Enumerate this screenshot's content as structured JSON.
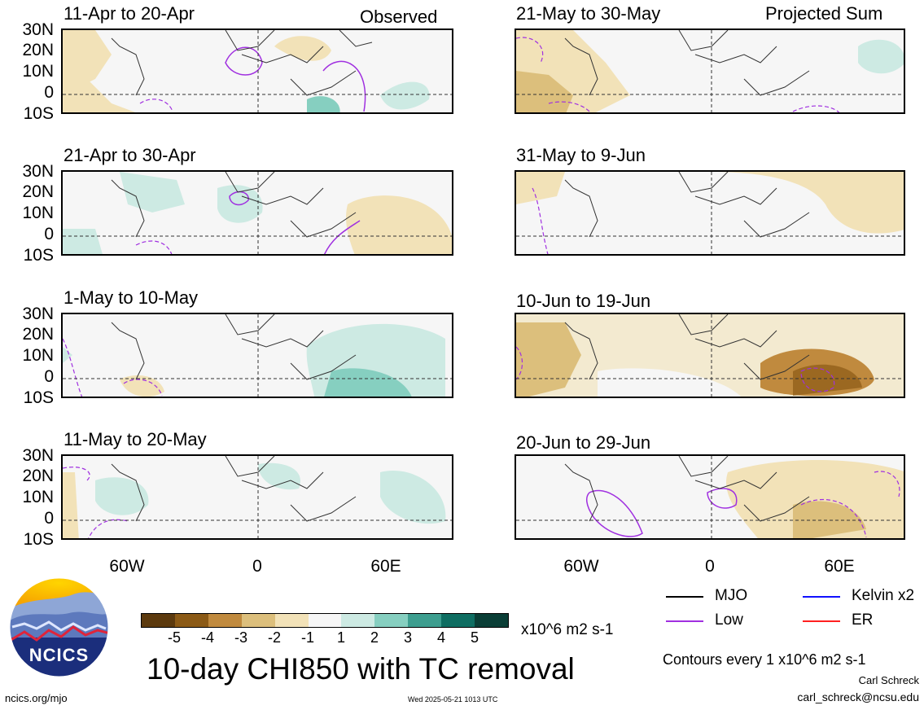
{
  "header": {
    "left": "Observed",
    "right": "Projected Sum"
  },
  "panels_left": [
    {
      "title": "11-Apr to 20-Apr"
    },
    {
      "title": "21-Apr to 30-Apr"
    },
    {
      "title": "1-May to 10-May"
    },
    {
      "title": "11-May to 20-May"
    }
  ],
  "panels_right": [
    {
      "title": "21-May to 30-May"
    },
    {
      "title": "31-May to 9-Jun"
    },
    {
      "title": "10-Jun to 19-Jun"
    },
    {
      "title": "20-Jun to 29-Jun"
    }
  ],
  "lat_labels": [
    "30N",
    "20N",
    "10N",
    "0",
    "10S"
  ],
  "lon_labels": [
    "60W",
    "0",
    "60E"
  ],
  "colorbar": {
    "labels": [
      "-5",
      "-4",
      "-3",
      "-2",
      "-1",
      "1",
      "2",
      "3",
      "4",
      "5"
    ],
    "colors": [
      "#5c3a0e",
      "#8b5a16",
      "#c08a3e",
      "#dcbf7c",
      "#f2e2b8",
      "#f6f6f6",
      "#cdeae3",
      "#86cfc0",
      "#3d9e8f",
      "#0f6e62",
      "#0a3e36"
    ],
    "units": "x10^6 m2 s-1"
  },
  "title": "10-day CHI850 with TC removal",
  "legend": {
    "items": [
      {
        "label": "MJO",
        "color": "#000000"
      },
      {
        "label": "Kelvin x2",
        "color": "#1010ff"
      },
      {
        "label": "Low",
        "color": "#a030e0"
      },
      {
        "label": "ER",
        "color": "#ff2020"
      }
    ],
    "contours_note": "Contours every 1 x10^6 m2 s-1"
  },
  "credits": {
    "author": "Carl Schreck",
    "email": "carl_schreck@ncsu.edu",
    "site": "ncics.org/mjo",
    "timestamp": "Wed 2025-05-21 1013 UTC",
    "logo_text": "NCICS"
  }
}
